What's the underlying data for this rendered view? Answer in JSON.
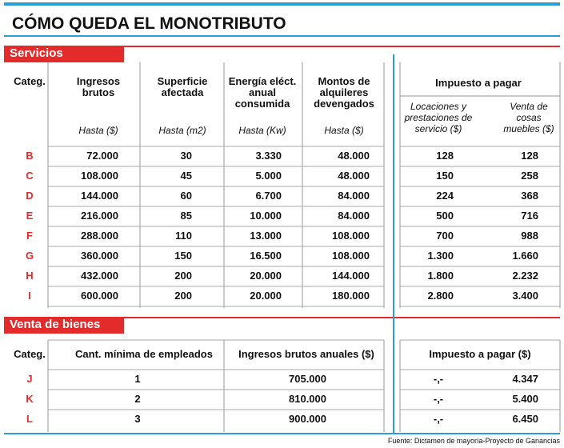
{
  "title": "CÓMO QUEDA EL MONOTRIBUTO",
  "servicios": {
    "label": "Servicios",
    "headers": [
      "Categ.",
      "Ingresos brutos",
      "Superficie afectada",
      "Energía eléct. anual consumida",
      "Montos de alquileres devengados",
      "Impuesto a pagar"
    ],
    "subheaders": [
      "Hasta ($)",
      "Hasta (m2)",
      "Hasta (Kw)",
      "Hasta ($)",
      "Locaciones y prestaciones de servicio ($)",
      "Venta de cosas muebles ($)"
    ],
    "rows": [
      [
        "B",
        "72.000",
        "30",
        "3.330",
        "48.000",
        "128",
        "128"
      ],
      [
        "C",
        "108.000",
        "45",
        "5.000",
        "48.000",
        "150",
        "258"
      ],
      [
        "D",
        "144.000",
        "60",
        "6.700",
        "84.000",
        "224",
        "368"
      ],
      [
        "E",
        "216.000",
        "85",
        "10.000",
        "84.000",
        "500",
        "716"
      ],
      [
        "F",
        "288.000",
        "110",
        "13.000",
        "108.000",
        "700",
        "988"
      ],
      [
        "G",
        "360.000",
        "150",
        "16.500",
        "108.000",
        "1.300",
        "1.660"
      ],
      [
        "H",
        "432.000",
        "200",
        "20.000",
        "144.000",
        "1.800",
        "2.232"
      ],
      [
        "I",
        "600.000",
        "200",
        "20.000",
        "180.000",
        "2.800",
        "3.400"
      ]
    ]
  },
  "bienes": {
    "label": "Venta de bienes",
    "headers": [
      "Categ.",
      "Cant. mínima de empleados",
      "Ingresos brutos anuales  ($)",
      "Impuesto a pagar ($)"
    ],
    "rows": [
      [
        "J",
        "1",
        "705.000",
        "-,-",
        "4.347"
      ],
      [
        "K",
        "2",
        "810.000",
        "-,-",
        "5.400"
      ],
      [
        "L",
        "3",
        "900.000",
        "-,-",
        "6.450"
      ]
    ]
  },
  "source": "Fuente: Dictamen de mayoría-Proyecto de Ganancias"
}
